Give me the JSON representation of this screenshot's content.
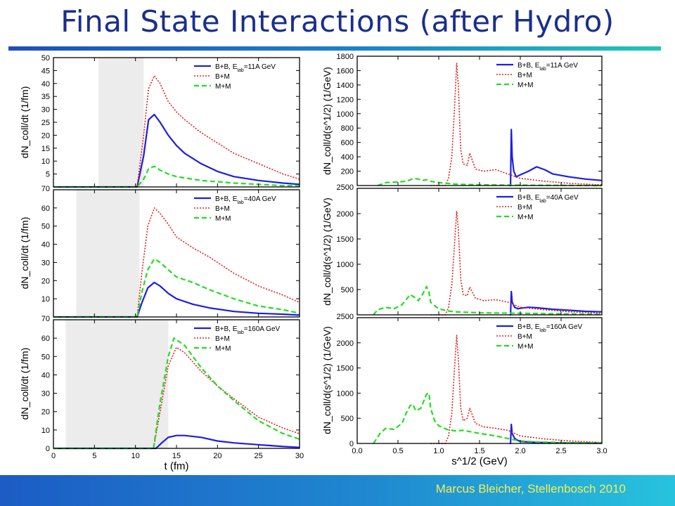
{
  "slide": {
    "title": "Final State Interactions (after Hydro)",
    "footer": "Marcus Bleicher, Stellenbosch 2010"
  },
  "colors": {
    "bb": "#1e1ee0",
    "bm": "#e02020",
    "mm": "#22dd22",
    "shade": "#ececec"
  },
  "chart_data": [
    {
      "type": "line",
      "ylabel": "dN_coll/dt (1/fm)",
      "xlabel": "",
      "xlim": [
        0,
        30
      ],
      "ylim": [
        0,
        50
      ],
      "shaded_x": [
        5.5,
        11
      ],
      "yticks": [
        5,
        10,
        15,
        20,
        25,
        30,
        35,
        40,
        45,
        50
      ],
      "top_label": "70",
      "series": [
        {
          "name": "B+B",
          "sub": ", E",
          "subsc": "lab",
          "post": "=11A GeV",
          "key": "bb",
          "x": [
            0,
            10.2,
            11.0,
            11.6,
            12.3,
            13,
            14,
            15,
            16,
            18,
            20,
            22,
            25,
            28,
            30
          ],
          "y": [
            0,
            0,
            12,
            26,
            28,
            25,
            20,
            16,
            13,
            9,
            6,
            4,
            2.5,
            1.5,
            1
          ]
        },
        {
          "name": "B+M",
          "key": "bm",
          "x": [
            0,
            10.2,
            11.0,
            11.6,
            12.3,
            13,
            14,
            15,
            16,
            18,
            20,
            22,
            25,
            28,
            30
          ],
          "y": [
            0,
            0,
            20,
            38,
            43,
            40,
            33,
            29,
            26,
            21,
            17,
            13,
            9,
            5,
            3
          ]
        },
        {
          "name": "M+M",
          "key": "mm",
          "x": [
            0,
            10.2,
            11.0,
            11.6,
            12.3,
            13,
            14,
            15,
            16,
            18,
            20,
            22,
            25,
            28,
            30
          ],
          "y": [
            0,
            0,
            3,
            7,
            8,
            6.5,
            5,
            4,
            3.5,
            2.5,
            2,
            1.5,
            1,
            0.5,
            0.5
          ]
        }
      ]
    },
    {
      "type": "line",
      "ylabel": "dN_coll/dt (1/fm)",
      "xlabel": "",
      "xlim": [
        0,
        30
      ],
      "ylim": [
        0,
        70
      ],
      "shaded_x": [
        2.8,
        10.5
      ],
      "yticks": [
        10,
        20,
        30,
        40,
        50,
        60
      ],
      "top_label": "70",
      "series": [
        {
          "name": "B+B",
          "sub": ", E",
          "subsc": "lab",
          "post": "=40A GeV",
          "key": "bb",
          "x": [
            0,
            10.2,
            10.8,
            11.5,
            12.3,
            13,
            14,
            15,
            17,
            19,
            22,
            25,
            28,
            30
          ],
          "y": [
            0,
            0,
            8,
            16,
            19,
            17,
            13,
            10,
            7,
            5,
            3,
            2,
            1.5,
            1
          ]
        },
        {
          "name": "B+M",
          "key": "bm",
          "x": [
            0,
            10.2,
            10.8,
            11.5,
            12.3,
            13,
            14,
            15,
            17,
            19,
            22,
            25,
            28,
            30
          ],
          "y": [
            0,
            0,
            25,
            50,
            60,
            57,
            51,
            44,
            38,
            33,
            24,
            17,
            12,
            8
          ]
        },
        {
          "name": "M+M",
          "key": "mm",
          "x": [
            0,
            10.2,
            10.8,
            11.5,
            12.3,
            13,
            14,
            15,
            17,
            19,
            22,
            25,
            28,
            30
          ],
          "y": [
            0,
            0,
            14,
            26,
            32,
            30,
            26,
            22,
            19,
            15,
            10,
            6,
            4,
            2
          ]
        }
      ]
    },
    {
      "type": "line",
      "ylabel": "dN_coll/dt (1/fm)",
      "xlabel": "t (fm)",
      "xlim": [
        0,
        30
      ],
      "ylim": [
        0,
        70
      ],
      "shaded_x": [
        1.5,
        14
      ],
      "yticks": [
        0,
        10,
        20,
        30,
        40,
        50,
        60
      ],
      "xticks": [
        0,
        5,
        10,
        15,
        20,
        25,
        30
      ],
      "top_label": "",
      "series": [
        {
          "name": "B+B",
          "sub": ", E",
          "subsc": "lab",
          "post": "=160A GeV",
          "key": "bb",
          "x": [
            0,
            12.5,
            13.2,
            14,
            15,
            16,
            18,
            20,
            22,
            25,
            28,
            30
          ],
          "y": [
            0,
            0,
            3,
            6,
            7,
            7,
            6,
            4,
            3,
            2,
            1,
            0.5
          ]
        },
        {
          "name": "B+M",
          "key": "bm",
          "x": [
            0,
            12.2,
            13,
            14,
            15,
            16,
            17,
            18,
            20,
            22,
            25,
            28,
            30
          ],
          "y": [
            0,
            0,
            20,
            45,
            55,
            52,
            47,
            42,
            34,
            27,
            17,
            11,
            8
          ]
        },
        {
          "name": "M+M",
          "key": "mm",
          "x": [
            0,
            12.2,
            13,
            14,
            14.7,
            16,
            17,
            18,
            20,
            22,
            25,
            28,
            30
          ],
          "y": [
            0,
            0,
            25,
            50,
            60,
            56,
            50,
            44,
            34,
            26,
            15,
            8,
            5
          ]
        }
      ]
    },
    {
      "type": "line",
      "ylabel": "dN_coll/d(s^1/2) (1/GeV)",
      "xlabel": "",
      "xlim": [
        0,
        3
      ],
      "ylim": [
        0,
        1800
      ],
      "yticks": [
        200,
        400,
        600,
        800,
        1000,
        1200,
        1400,
        1600,
        1800
      ],
      "top_label": "2500",
      "series": [
        {
          "name": "B+B",
          "sub": ", E",
          "subsc": "lab",
          "post": "=11A GeV",
          "key": "bb",
          "x": [
            1.87,
            1.88,
            1.89,
            1.9,
            1.92,
            1.95,
            2.0,
            2.1,
            2.2,
            2.3,
            2.4,
            2.6,
            2.8,
            3.0
          ],
          "y": [
            0,
            0,
            780,
            400,
            200,
            120,
            150,
            200,
            260,
            220,
            160,
            120,
            90,
            70
          ]
        },
        {
          "name": "B+M",
          "key": "bm",
          "x": [
            0.9,
            1.08,
            1.12,
            1.16,
            1.19,
            1.22,
            1.24,
            1.27,
            1.3,
            1.35,
            1.38,
            1.45,
            1.55,
            1.7,
            1.85,
            2.0,
            2.3,
            2.6,
            3.0
          ],
          "y": [
            0,
            0,
            100,
            400,
            1000,
            1700,
            1400,
            500,
            300,
            280,
            450,
            230,
            200,
            220,
            160,
            100,
            60,
            30,
            10
          ]
        },
        {
          "name": "M+M",
          "key": "mm",
          "x": [
            0.25,
            0.35,
            0.5,
            0.6,
            0.7,
            0.75,
            0.8,
            0.85,
            0.9,
            1.0,
            1.1,
            1.2,
            1.5,
            2.0,
            2.5,
            3.0
          ],
          "y": [
            0,
            40,
            50,
            60,
            100,
            90,
            70,
            80,
            60,
            40,
            30,
            20,
            10,
            5,
            3,
            0
          ]
        }
      ]
    },
    {
      "type": "line",
      "ylabel": "dN_coll/d(s^1/2) (1/GeV)",
      "xlabel": "",
      "xlim": [
        0,
        3
      ],
      "ylim": [
        0,
        2500
      ],
      "yticks": [
        500,
        1000,
        1500,
        2000
      ],
      "top_label": "2500",
      "series": [
        {
          "name": "B+B",
          "sub": ", E",
          "subsc": "lab",
          "post": "=40A GeV",
          "key": "bb",
          "x": [
            1.87,
            1.88,
            1.89,
            1.9,
            1.93,
            1.97,
            2.0,
            2.1,
            2.2,
            2.4,
            2.6,
            2.8,
            3.0
          ],
          "y": [
            0,
            0,
            460,
            250,
            150,
            120,
            130,
            150,
            140,
            110,
            90,
            70,
            60
          ]
        },
        {
          "name": "B+M",
          "key": "bm",
          "x": [
            0.9,
            1.08,
            1.12,
            1.16,
            1.19,
            1.22,
            1.24,
            1.27,
            1.3,
            1.35,
            1.38,
            1.45,
            1.55,
            1.7,
            1.85,
            2.0,
            2.3,
            2.6,
            3.0
          ],
          "y": [
            0,
            0,
            150,
            600,
            1300,
            2050,
            1700,
            700,
            400,
            380,
            550,
            330,
            280,
            300,
            250,
            150,
            100,
            60,
            30
          ]
        },
        {
          "name": "M+M",
          "key": "mm",
          "x": [
            0.2,
            0.25,
            0.35,
            0.45,
            0.55,
            0.6,
            0.65,
            0.7,
            0.75,
            0.8,
            0.85,
            0.88,
            0.9,
            0.95,
            1.0,
            1.1,
            1.2,
            1.5,
            2.0,
            2.5,
            3.0
          ],
          "y": [
            0,
            100,
            150,
            120,
            200,
            300,
            400,
            350,
            280,
            400,
            560,
            450,
            250,
            180,
            120,
            80,
            60,
            40,
            30,
            20,
            10
          ]
        }
      ]
    },
    {
      "type": "line",
      "ylabel": "dN_coll/d(s^1/2) (1/GeV)",
      "xlabel": "s^1/2 (GeV)",
      "xlim": [
        0,
        3
      ],
      "ylim": [
        0,
        2500
      ],
      "yticks": [
        0,
        500,
        1000,
        1500,
        2000
      ],
      "xticks": [
        "0.0",
        "0.5",
        "1.0",
        "1.5",
        "2.0",
        "2.5",
        "3.0"
      ],
      "top_label": "",
      "series": [
        {
          "name": "B+B",
          "sub": ", E",
          "subsc": "lab",
          "post": "=160A GeV",
          "key": "bb",
          "x": [
            1.87,
            1.88,
            1.89,
            1.9,
            1.93,
            1.97,
            2.0,
            2.2,
            2.5,
            3.0
          ],
          "y": [
            0,
            0,
            380,
            200,
            100,
            60,
            40,
            20,
            10,
            5
          ]
        },
        {
          "name": "B+M",
          "key": "bm",
          "x": [
            0.9,
            1.08,
            1.12,
            1.16,
            1.19,
            1.22,
            1.24,
            1.27,
            1.3,
            1.35,
            1.38,
            1.45,
            1.55,
            1.7,
            1.85,
            2.0,
            2.3,
            2.6,
            3.0
          ],
          "y": [
            0,
            0,
            150,
            600,
            1400,
            2150,
            1700,
            700,
            450,
            500,
            700,
            400,
            330,
            300,
            260,
            150,
            90,
            50,
            20
          ]
        },
        {
          "name": "M+M",
          "key": "mm",
          "x": [
            0.2,
            0.28,
            0.35,
            0.45,
            0.55,
            0.6,
            0.65,
            0.68,
            0.72,
            0.78,
            0.85,
            0.88,
            0.9,
            0.95,
            1.0,
            1.1,
            1.2,
            1.3,
            1.5,
            1.7,
            1.9,
            2.0,
            2.2,
            2.6,
            3.0
          ],
          "y": [
            0,
            200,
            300,
            280,
            400,
            600,
            750,
            780,
            650,
            700,
            980,
            1000,
            700,
            450,
            350,
            280,
            250,
            260,
            200,
            150,
            80,
            50,
            30,
            15,
            10
          ]
        }
      ]
    }
  ]
}
